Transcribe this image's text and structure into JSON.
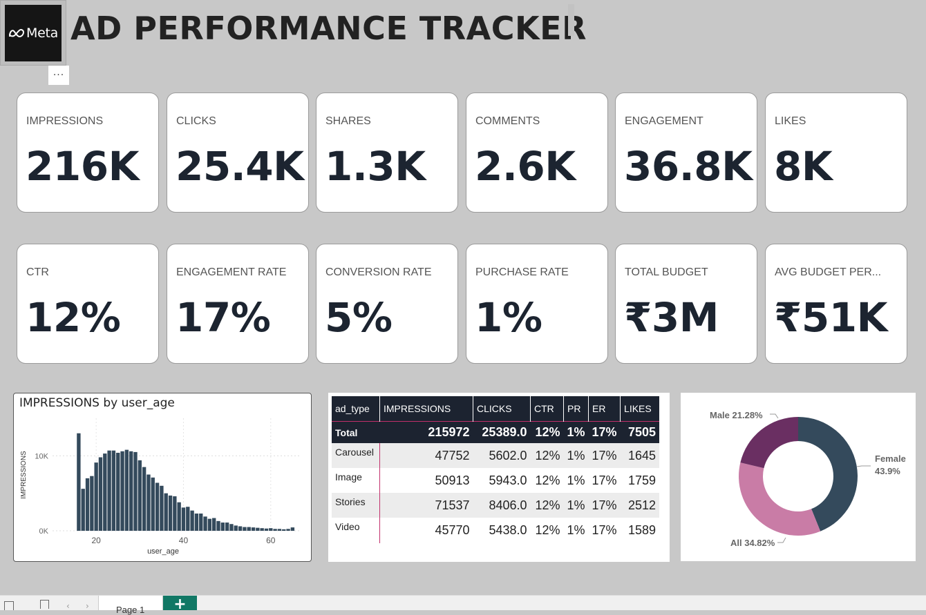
{
  "header": {
    "logo_text": "Meta",
    "title": "AD PERFORMANCE TRACKER",
    "more_label": "···"
  },
  "kpis_row1": [
    {
      "label": "IMPRESSIONS",
      "value": "216K"
    },
    {
      "label": "CLICKS",
      "value": "25.4K"
    },
    {
      "label": "SHARES",
      "value": "1.3K"
    },
    {
      "label": "COMMENTS",
      "value": "2.6K"
    },
    {
      "label": "ENGAGEMENT",
      "value": "36.8K"
    },
    {
      "label": "LIKES",
      "value": "8K"
    }
  ],
  "kpis_row2": [
    {
      "label": "CTR",
      "value": "12%"
    },
    {
      "label": "ENGAGEMENT RATE",
      "value": "17%"
    },
    {
      "label": "CONVERSION RATE",
      "value": "5%"
    },
    {
      "label": "PURCHASE RATE",
      "value": "1%"
    },
    {
      "label": "TOTAL BUDGET",
      "value": "₹3M"
    },
    {
      "label": "AVG BUDGET PER...",
      "value": "₹51K"
    }
  ],
  "chart_data": {
    "type": "bar",
    "title": "IMPRESSIONS by user_age",
    "xlabel": "user_age",
    "ylabel": "IMPRESSIONS",
    "xlim": [
      10,
      67
    ],
    "ylim": [
      0,
      15000
    ],
    "x_ticks": [
      20,
      40,
      60
    ],
    "y_ticks": [
      {
        "value": 0,
        "label": "0K"
      },
      {
        "value": 10000,
        "label": "10K"
      }
    ],
    "x": [
      16,
      17,
      18,
      19,
      20,
      21,
      22,
      23,
      24,
      25,
      26,
      27,
      28,
      29,
      30,
      31,
      32,
      33,
      34,
      35,
      36,
      37,
      38,
      39,
      40,
      41,
      42,
      43,
      44,
      45,
      46,
      47,
      48,
      49,
      50,
      51,
      52,
      53,
      54,
      55,
      56,
      57,
      58,
      59,
      60,
      61,
      62,
      63,
      64,
      65
    ],
    "values": [
      13000,
      5600,
      7000,
      7300,
      9100,
      9800,
      10300,
      10700,
      10700,
      10400,
      10600,
      10800,
      10600,
      10500,
      9400,
      8500,
      7500,
      7100,
      6400,
      6000,
      5000,
      4700,
      4600,
      3800,
      3100,
      3200,
      2700,
      2300,
      2300,
      1900,
      1600,
      1700,
      1300,
      1100,
      1100,
      900,
      700,
      600,
      500,
      500,
      450,
      400,
      350,
      300,
      350,
      250,
      250,
      200,
      250,
      450
    ]
  },
  "table": {
    "headers": [
      "ad_type",
      "IMPRESSIONS",
      "CLICKS",
      "CTR",
      "PR",
      "ER",
      "LIKES"
    ],
    "total": [
      "Total",
      "215972",
      "25389.0",
      "12%",
      "1%",
      "17%",
      "7505"
    ],
    "rows": [
      [
        "Carousel",
        "47752",
        "5602.0",
        "12%",
        "1%",
        "17%",
        "1645"
      ],
      [
        "Image",
        "50913",
        "5943.0",
        "12%",
        "1%",
        "17%",
        "1759"
      ],
      [
        "Stories",
        "71537",
        "8406.0",
        "12%",
        "1%",
        "17%",
        "2512"
      ],
      [
        "Video",
        "45770",
        "5438.0",
        "12%",
        "1%",
        "17%",
        "1589"
      ]
    ]
  },
  "donut": {
    "segments": [
      {
        "name": "Female",
        "pct": "43.9%",
        "value": 43.9,
        "color": "#344a5c"
      },
      {
        "name": "All",
        "pct": "34.82%",
        "value": 34.82,
        "color": "#c97ca6"
      },
      {
        "name": "Male",
        "pct": "21.28%",
        "value": 21.28,
        "color": "#6a2f62"
      }
    ],
    "label_female_1": "Female",
    "label_female_2": "43.9%",
    "label_all": "All 34.82%",
    "label_male": "Male 21.28%"
  },
  "footer": {
    "page_tab": "Page 1",
    "add_label": "+"
  }
}
